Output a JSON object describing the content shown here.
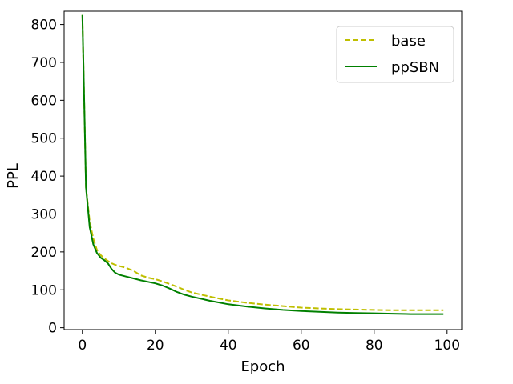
{
  "chart_data": {
    "type": "line",
    "xlabel": "Epoch",
    "ylabel": "PPL",
    "xlim": [
      -5,
      104
    ],
    "ylim": [
      -5,
      835
    ],
    "xticks": [
      0,
      20,
      40,
      60,
      80,
      100
    ],
    "yticks": [
      0,
      100,
      200,
      300,
      400,
      500,
      600,
      700,
      800
    ],
    "grid": false,
    "legend_position": "top-right",
    "series": [
      {
        "name": "base",
        "color": "#bfbf00",
        "style": "dashed",
        "x": [
          0,
          1,
          2,
          3,
          4,
          5,
          6,
          7,
          8,
          9,
          10,
          12,
          14,
          16,
          18,
          20,
          22,
          24,
          26,
          28,
          30,
          35,
          40,
          45,
          50,
          55,
          60,
          65,
          70,
          75,
          80,
          85,
          90,
          95,
          99
        ],
        "y": [
          825,
          370,
          280,
          235,
          205,
          192,
          183,
          176,
          170,
          166,
          163,
          158,
          150,
          138,
          132,
          128,
          122,
          115,
          108,
          100,
          93,
          82,
          72,
          66,
          61,
          57,
          53,
          51,
          49,
          48,
          47,
          46,
          46,
          46,
          46
        ]
      },
      {
        "name": "ppSBN",
        "color": "#008000",
        "style": "solid",
        "x": [
          0,
          1,
          2,
          3,
          4,
          5,
          6,
          7,
          8,
          9,
          10,
          12,
          14,
          16,
          18,
          20,
          22,
          24,
          26,
          28,
          30,
          35,
          40,
          45,
          50,
          55,
          60,
          65,
          70,
          75,
          80,
          85,
          90,
          95,
          99
        ],
        "y": [
          825,
          370,
          265,
          220,
          197,
          185,
          178,
          170,
          155,
          145,
          140,
          135,
          130,
          125,
          121,
          117,
          111,
          103,
          94,
          87,
          82,
          71,
          62,
          56,
          51,
          47,
          44,
          42,
          40,
          39,
          38,
          37,
          36,
          36,
          36
        ]
      }
    ]
  }
}
